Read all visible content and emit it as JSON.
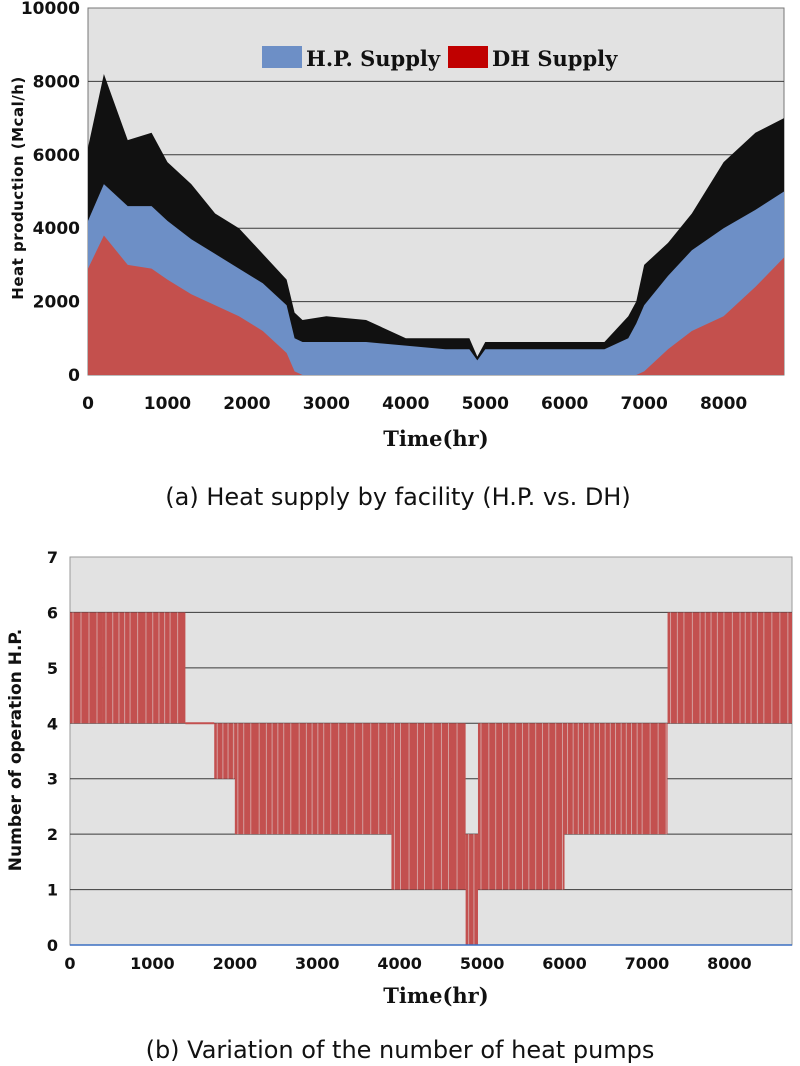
{
  "colors": {
    "hp_supply": "#6d8fc6",
    "dh_supply": "#c4504d",
    "plot_bg": "#e2e2e2",
    "grid": "#3a3a3a",
    "bar_red": "#c3504f"
  },
  "chart_data": [
    {
      "id": "heat-supply",
      "type": "area",
      "title": "",
      "caption": "(a) Heat supply by facility (H.P. vs. DH)",
      "xlabel": "Time(hr)",
      "ylabel": "Heat production (Mcal/h)",
      "xlim": [
        0,
        8760
      ],
      "ylim": [
        0,
        10000
      ],
      "xticks": [
        0,
        1000,
        2000,
        3000,
        4000,
        5000,
        6000,
        7000,
        8000
      ],
      "xtick_labels": [
        "0",
        "1000",
        "2000",
        "3000",
        "4000",
        "5000",
        "6000",
        "7000",
        "8000"
      ],
      "yticks": [
        0,
        2000,
        4000,
        6000,
        8000,
        10000
      ],
      "ytick_labels": [
        "0",
        "2000",
        "4000",
        "6000",
        "8000",
        "10000"
      ],
      "grid": true,
      "legend": {
        "position": "top-center",
        "entries": [
          "H.P. Supply",
          "DH Supply"
        ]
      },
      "x": [
        0,
        200,
        500,
        800,
        1000,
        1300,
        1600,
        1900,
        2200,
        2500,
        2600,
        2700,
        3000,
        3500,
        4000,
        4500,
        4800,
        4900,
        5000,
        5500,
        6000,
        6500,
        6800,
        6900,
        7000,
        7300,
        7600,
        8000,
        8400,
        8760
      ],
      "series": [
        {
          "name": "DH Supply",
          "values": [
            2900,
            3800,
            3000,
            2900,
            2600,
            2200,
            1900,
            1600,
            1200,
            600,
            100,
            0,
            0,
            0,
            0,
            0,
            0,
            0,
            0,
            0,
            0,
            0,
            0,
            0,
            100,
            700,
            1200,
            1600,
            2400,
            3200
          ]
        },
        {
          "name": "H.P. Supply",
          "values": [
            1300,
            1400,
            1600,
            1700,
            1600,
            1500,
            1400,
            1300,
            1300,
            1300,
            900,
            900,
            900,
            900,
            800,
            700,
            700,
            400,
            700,
            700,
            700,
            700,
            1000,
            1400,
            1800,
            2000,
            2200,
            2400,
            2100,
            1800
          ]
        },
        {
          "name": "Total (envelope)",
          "values": [
            6200,
            8200,
            6400,
            6600,
            5800,
            5200,
            4400,
            4000,
            3300,
            2600,
            1700,
            1500,
            1600,
            1500,
            1000,
            1000,
            1000,
            500,
            900,
            900,
            900,
            900,
            1600,
            2000,
            3000,
            3600,
            4400,
            5800,
            6600,
            7000
          ]
        }
      ]
    },
    {
      "id": "hp-count",
      "type": "bar",
      "title": "",
      "caption": "(b) Variation of the number of heat pumps",
      "xlabel": "Time(hr)",
      "ylabel": "Number of operation H.P.",
      "xlim": [
        0,
        8760
      ],
      "ylim": [
        0,
        7
      ],
      "xticks": [
        0,
        1000,
        2000,
        3000,
        4000,
        5000,
        6000,
        7000,
        8000
      ],
      "xtick_labels": [
        "0",
        "1000",
        "2000",
        "3000",
        "4000",
        "5000",
        "6000",
        "7000",
        "8000"
      ],
      "yticks": [
        0,
        1,
        2,
        3,
        4,
        5,
        6,
        7
      ],
      "ytick_labels": [
        "0",
        "1",
        "2",
        "3",
        "4",
        "5",
        "6",
        "7"
      ],
      "grid": true,
      "segments": [
        {
          "x0": 0,
          "x1": 400,
          "min": 4,
          "max": 6
        },
        {
          "x0": 400,
          "x1": 1400,
          "min": 4,
          "max": 6
        },
        {
          "x0": 1400,
          "x1": 1750,
          "min": 4,
          "max": 4
        },
        {
          "x0": 1750,
          "x1": 2000,
          "min": 3,
          "max": 4
        },
        {
          "x0": 2000,
          "x1": 3900,
          "min": 2,
          "max": 4
        },
        {
          "x0": 3900,
          "x1": 4800,
          "min": 1,
          "max": 4
        },
        {
          "x0": 4800,
          "x1": 4950,
          "min": 0,
          "max": 2
        },
        {
          "x0": 4950,
          "x1": 6000,
          "min": 1,
          "max": 4
        },
        {
          "x0": 6000,
          "x1": 7250,
          "min": 2,
          "max": 4
        },
        {
          "x0": 7250,
          "x1": 8760,
          "min": 4,
          "max": 6
        }
      ]
    }
  ]
}
